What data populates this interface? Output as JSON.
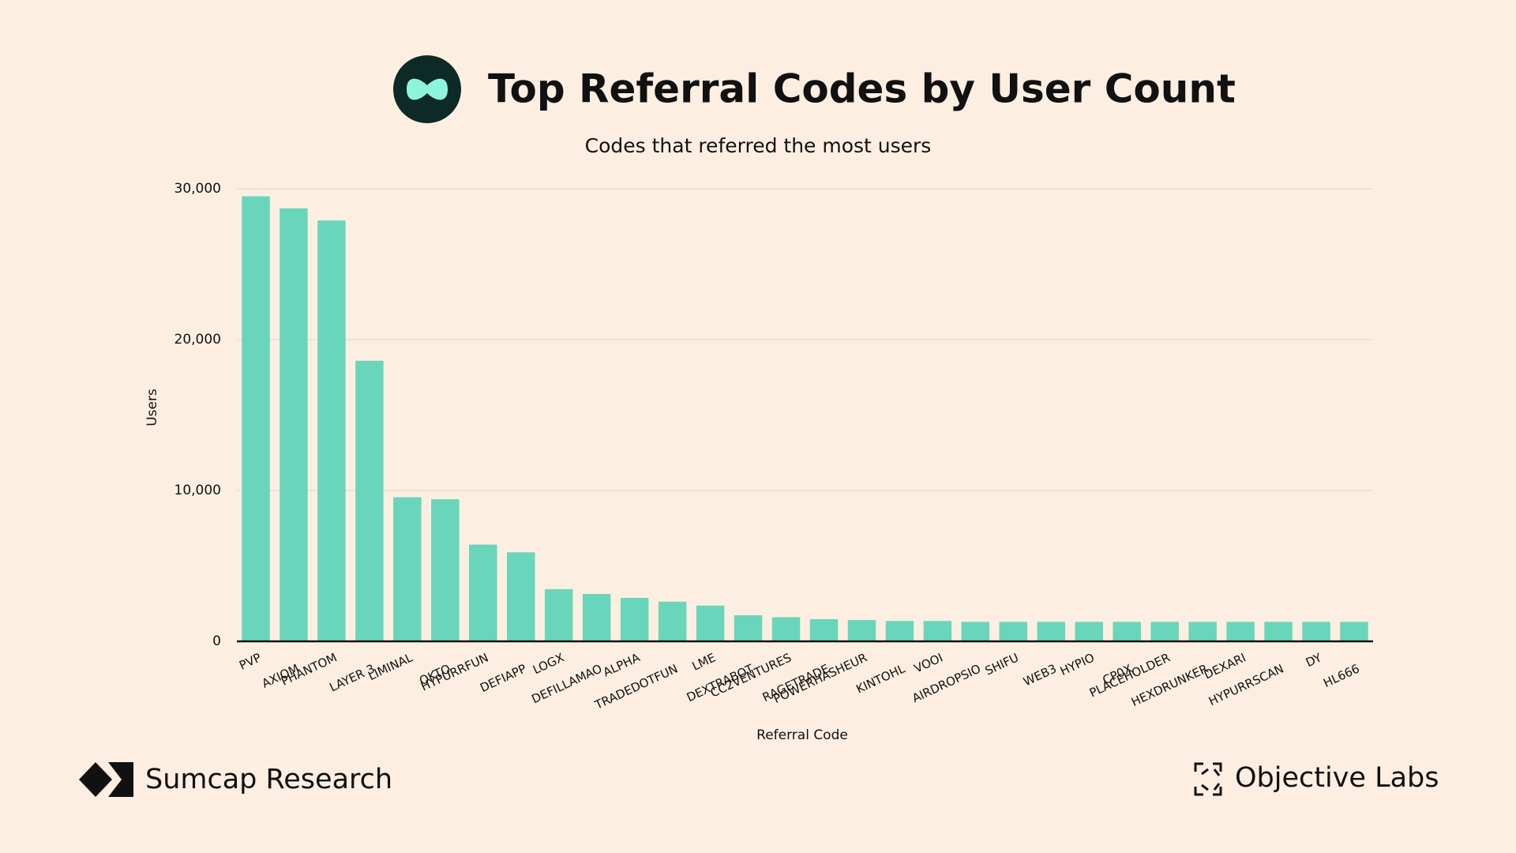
{
  "chart_data": {
    "type": "bar",
    "title": "Top Referral Codes by User Count",
    "subtitle": "Codes that referred the most users",
    "x_label": "Referral Code",
    "y_label": "Users",
    "categories": [
      "PVP",
      "AXIOM",
      "PHANTOM",
      "LAYER 3",
      "LIMINAL",
      "OKTO",
      "HYPURRFUN",
      "DEFIAPP",
      "LOGX",
      "DEFILLAMAO",
      "ALPHA",
      "TRADEDOTFUN",
      "LME",
      "DEXTRABOT",
      "CC2VENTURES",
      "RAGETRADE",
      "POWERHASHEUR",
      "KINTOHL",
      "VOOI",
      "AIRDROPSIO",
      "SHIFU",
      "WEB3",
      "HYPIO",
      "CP0X",
      "PLACEHOLDER",
      "HEXDRUNKER",
      "DEXARI",
      "HYPURRSCAN",
      "DY",
      "HL666"
    ],
    "values": [
      29500,
      28700,
      27900,
      18600,
      9550,
      9420,
      6410,
      5900,
      3460,
      3140,
      2880,
      2630,
      2370,
      1730,
      1600,
      1470,
      1410,
      1350,
      1350,
      1290,
      1290,
      1290,
      1290,
      1290,
      1290,
      1290,
      1290,
      1290,
      1290,
      1290
    ],
    "color": "#69d6bb",
    "ylim": [
      0,
      30000
    ],
    "yticks": [
      0,
      {
        "value": 10000,
        "label": "10,000"
      },
      {
        "value": 20000,
        "label": "20,000"
      },
      {
        "value": 30000,
        "label": "30,000"
      }
    ],
    "grid": true,
    "footer_left": "Sumcap Research",
    "footer_right": "Objective Labs"
  }
}
